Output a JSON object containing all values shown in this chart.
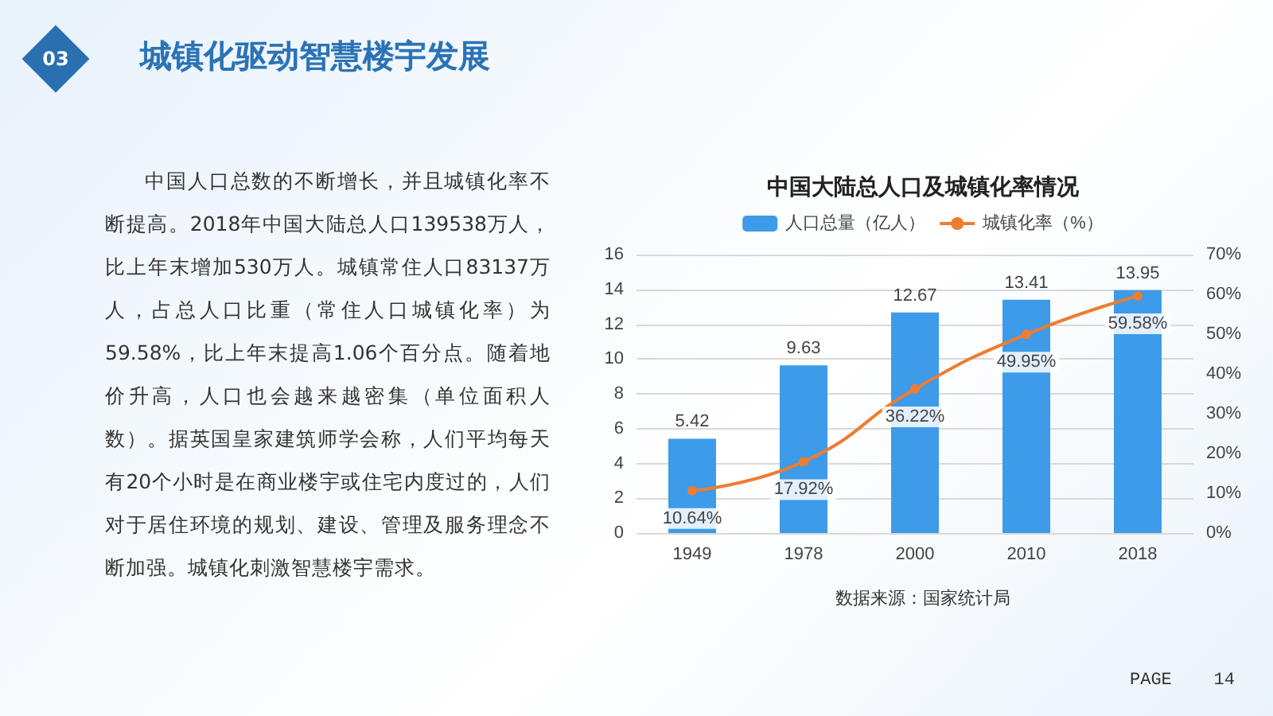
{
  "chart_data": {
    "type": "bar",
    "title": "中国大陆总人口及城镇化率情况",
    "categories": [
      "1949",
      "1978",
      "2000",
      "2010",
      "2018"
    ],
    "series": [
      {
        "name": "人口总量（亿人）",
        "color": "#3d9be9",
        "values": [
          5.42,
          9.63,
          12.67,
          13.41,
          13.95
        ],
        "value_labels": [
          "5.42",
          "9.63",
          "12.67",
          "13.41",
          "13.95"
        ]
      },
      {
        "name": "城镇化率（%）",
        "type": "line",
        "axis": "y2",
        "color": "#ed7d31",
        "values": [
          10.64,
          17.92,
          36.22,
          49.95,
          59.58
        ],
        "value_labels": [
          "10.64%",
          "17.92%",
          "36.22%",
          "49.95%",
          "59.58%"
        ]
      }
    ],
    "ylim": [
      0,
      16
    ],
    "yticks": [
      0,
      2,
      4,
      6,
      8,
      10,
      12,
      14,
      16
    ],
    "y2lim": [
      0,
      70
    ],
    "y2ticks": [
      {
        "value": 0,
        "label": "0%"
      },
      {
        "value": 10,
        "label": "10%"
      },
      {
        "value": 20,
        "label": "20%"
      },
      {
        "value": 30,
        "label": "30%"
      },
      {
        "value": 40,
        "label": "40%"
      },
      {
        "value": 50,
        "label": "50%"
      },
      {
        "value": 60,
        "label": "60%"
      },
      {
        "value": 70,
        "label": "70%"
      }
    ],
    "grid": "y",
    "legend": "top",
    "marker": "circle",
    "line_style": "solid",
    "annotations": [
      "03",
      "城镇化驱动智慧楼宇发展",
      "中国人口总数的不断增长，并且城镇化率不断提高。2018年中国大陆总人口139538万人，比上年末增加530万人。城镇常住人口83137万人，占总人口比重（常住人口城镇化率）为59.58%，比上年末提高1.06个百分点。随着地价升高，人口也会越来越密集（单位面积人数）。据英国皇家建筑师学会称，人们平均每天有20个小时是在商业楼宇或住宅内度过的，人们对于居住环境的规划、建设、管理及服务理念不断加强。城镇化刺激智慧楼宇需求。",
      "数据来源：国家统计局",
      "PAGE    14"
    ]
  }
}
